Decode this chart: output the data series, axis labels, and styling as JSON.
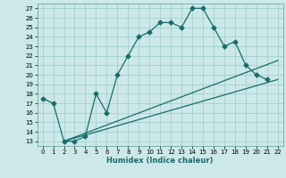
{
  "xlabel": "Humidex (Indice chaleur)",
  "bg_color": "#cce8e8",
  "grid_color": "#99cccc",
  "line_color": "#1a6b6b",
  "xlim": [
    -0.5,
    22.5
  ],
  "ylim": [
    12.5,
    27.5
  ],
  "xticks": [
    0,
    1,
    2,
    3,
    4,
    5,
    6,
    7,
    8,
    9,
    10,
    11,
    12,
    13,
    14,
    15,
    16,
    17,
    18,
    19,
    20,
    21,
    22
  ],
  "yticks": [
    13,
    14,
    15,
    16,
    17,
    18,
    19,
    20,
    21,
    22,
    23,
    24,
    25,
    26,
    27
  ],
  "line1_x": [
    0,
    1,
    2,
    3,
    4,
    5,
    6,
    7,
    8,
    9,
    10,
    11,
    12,
    13,
    14,
    15,
    16,
    17,
    18,
    19,
    20,
    21
  ],
  "line1_y": [
    17.5,
    17.0,
    13.0,
    13.0,
    13.5,
    18.0,
    16.0,
    20.0,
    22.0,
    24.0,
    24.5,
    25.5,
    25.5,
    25.0,
    27.0,
    27.0,
    25.0,
    23.0,
    23.5,
    21.0,
    20.0,
    19.5
  ],
  "line2_x": [
    2,
    22
  ],
  "line2_y": [
    13.0,
    21.5
  ],
  "line3_x": [
    2,
    22
  ],
  "line3_y": [
    13.0,
    19.5
  ]
}
